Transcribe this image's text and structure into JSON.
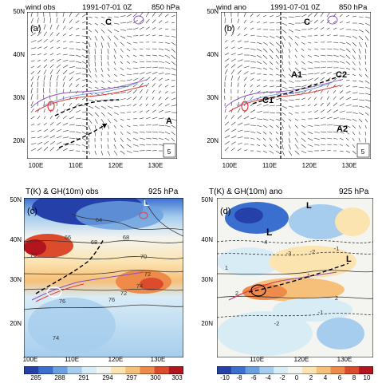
{
  "panels": [
    {
      "id": "a",
      "left_title": "wind obs",
      "center_title": "1991-07-01 0Z",
      "right_title": "850 hPa",
      "panel_label": "(a)",
      "annotations": [
        "C",
        "A"
      ],
      "ref_vector": "5",
      "lat_labels": [
        "50N",
        "40N",
        "30N",
        "20N"
      ],
      "lon_labels": [
        "100E",
        "110E",
        "120E",
        "130E"
      ]
    },
    {
      "id": "b",
      "left_title": "wind ano",
      "center_title": "1991-07-01 0Z",
      "right_title": "850 hPa",
      "panel_label": "(b)",
      "annotations": [
        "C",
        "A1",
        "C2",
        "C1",
        "A2"
      ],
      "ref_vector": "5",
      "lat_labels": [
        "50N",
        "40N",
        "30N",
        "20N"
      ],
      "lon_labels": [
        "100E",
        "110E",
        "120E",
        "130E"
      ]
    },
    {
      "id": "c",
      "left_title": "T(K) & GH(10m) obs",
      "right_title": "925 hPa",
      "panel_label": "(c)",
      "annotations": [
        "L"
      ],
      "contour_labels": [
        "64",
        "66",
        "68",
        "68",
        "70",
        "70",
        "72",
        "72",
        "74",
        "76",
        "76",
        "74"
      ],
      "lat_labels": [
        "50N",
        "40N",
        "30N",
        "20N"
      ],
      "lon_labels": [
        "100E",
        "110E",
        "120E",
        "130E"
      ]
    },
    {
      "id": "d",
      "left_title": "T(K) & GH(10m) ano",
      "right_title": "925 hPa",
      "panel_label": "(d)",
      "annotations": [
        "L",
        "L",
        "L"
      ],
      "contour_labels": [
        "-4",
        "-3",
        "-2",
        "-1",
        "1",
        "1",
        "2",
        "2",
        "-1",
        "-2"
      ],
      "lat_labels": [
        "50N",
        "40N",
        "30N",
        "20N"
      ],
      "lon_labels": [
        "110E",
        "120E",
        "130E"
      ]
    }
  ],
  "colorbars": [
    {
      "ticks": [
        "285",
        "288",
        "291",
        "294",
        "297",
        "300",
        "303"
      ],
      "colors": [
        "#2540a8",
        "#3b6fcf",
        "#6aa0e0",
        "#a6cdee",
        "#d8ecf6",
        "#f4f4f0",
        "#fbe4b0",
        "#f6c07a",
        "#ee8a4a",
        "#dc4c2c",
        "#b4141e"
      ]
    },
    {
      "ticks": [
        "-10",
        "-8",
        "-6",
        "-4",
        "-2",
        "0",
        "2",
        "4",
        "6",
        "8",
        "10"
      ],
      "colors": [
        "#2540a8",
        "#3b6fcf",
        "#6aa0e0",
        "#a6cdee",
        "#d8ecf6",
        "#f4f4f0",
        "#fbe4b0",
        "#f6c07a",
        "#ee8a4a",
        "#dc4c2c",
        "#b4141e"
      ]
    }
  ]
}
